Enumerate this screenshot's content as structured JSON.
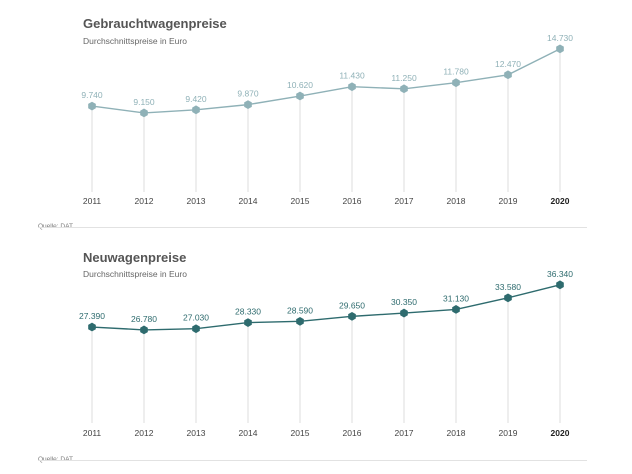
{
  "chart_data": [
    {
      "type": "line",
      "title": "Gebrauchtwagenpreise",
      "subtitle": "Durchschnittspreise in Euro",
      "categories": [
        "2011",
        "2012",
        "2013",
        "2014",
        "2015",
        "2016",
        "2017",
        "2018",
        "2019",
        "2020"
      ],
      "values": [
        9740,
        9150,
        9420,
        9870,
        10620,
        11430,
        11250,
        11780,
        12470,
        14730
      ],
      "value_labels": [
        "9.740",
        "9.150",
        "9.420",
        "9.870",
        "10.620",
        "11.430",
        "11.250",
        "11.780",
        "12.470",
        "14.730"
      ],
      "highlight_category": "2020",
      "ylim": [
        4000,
        15500
      ],
      "color": "#8fb1b7",
      "grid": false,
      "source": "Quelle: DAT"
    },
    {
      "type": "line",
      "title": "Neuwagenpreise",
      "subtitle": "Durchschnittspreise in Euro",
      "categories": [
        "2011",
        "2012",
        "2013",
        "2014",
        "2015",
        "2016",
        "2017",
        "2018",
        "2019",
        "2020"
      ],
      "values": [
        27390,
        26780,
        27030,
        28330,
        28590,
        29650,
        30350,
        31130,
        33580,
        36340
      ],
      "value_labels": [
        "27.390",
        "26.780",
        "27.030",
        "28.330",
        "28.590",
        "29.650",
        "30.350",
        "31.130",
        "33.580",
        "36.340"
      ],
      "highlight_category": "2020",
      "ylim": [
        10000,
        38000
      ],
      "color": "#2e6b6e",
      "grid": false,
      "source": "Quelle: DAT"
    }
  ]
}
